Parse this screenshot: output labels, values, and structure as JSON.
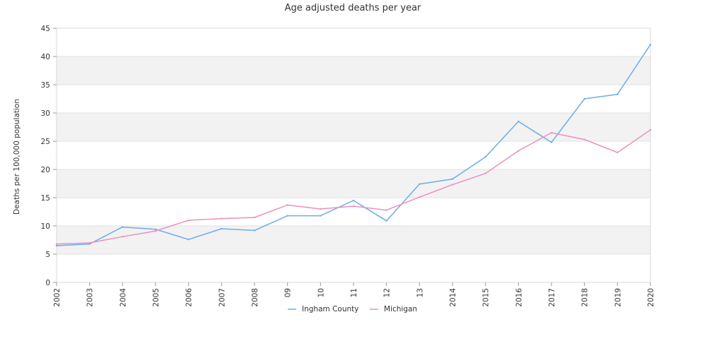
{
  "chart_data": {
    "type": "line",
    "title": "Age adjusted deaths per year",
    "ylabel": "Deaths per 100,000 population",
    "xlabel": "",
    "x": [
      "2002",
      "2003",
      "2004",
      "2005",
      "2006",
      "2007",
      "2008",
      "09",
      "10",
      "11",
      "12",
      "13",
      "2014",
      "2015",
      "2016",
      "2017",
      "2018",
      "2019",
      "2020"
    ],
    "ylim": [
      0,
      45
    ],
    "yticks": [
      "0",
      "5",
      "10",
      "15",
      "20",
      "25",
      "30",
      "35",
      "40",
      "45"
    ],
    "grid": "alternating horizontal bands",
    "legend_position": "bottom-center",
    "series": [
      {
        "name": "Ingham County",
        "color": "#6aaee8",
        "values": [
          6.5,
          6.8,
          9.8,
          9.4,
          7.6,
          9.5,
          9.2,
          11.8,
          11.8,
          14.5,
          10.9,
          17.4,
          18.3,
          22.2,
          28.5,
          24.8,
          32.5,
          33.3,
          42.1
        ]
      },
      {
        "name": "Michigan",
        "color": "#ee8fbe",
        "values": [
          6.8,
          7.0,
          8.1,
          9.1,
          11.0,
          11.3,
          11.5,
          13.7,
          13.0,
          13.5,
          12.8,
          15.1,
          17.3,
          19.3,
          23.3,
          26.5,
          25.3,
          23.0,
          27.0
        ]
      }
    ]
  }
}
